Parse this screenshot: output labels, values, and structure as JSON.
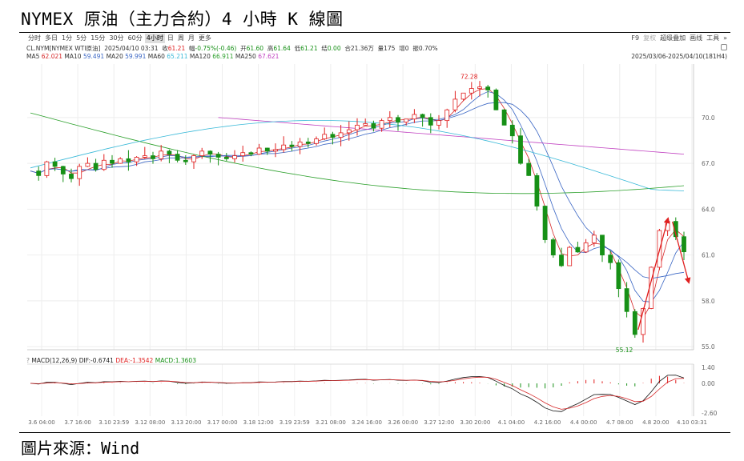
{
  "page": {
    "title": "NYMEX 原油（主力合約）4 小時 K 線圖",
    "source": "圖片來源：Wind"
  },
  "toolbar": {
    "timeframes": [
      "分时",
      "多日",
      "1分",
      "5分",
      "15分",
      "30分",
      "60分",
      "4小时",
      "日",
      "周",
      "月",
      "更多"
    ],
    "active_timeframe": "4小时",
    "tools": [
      "F9",
      "复权",
      "超级叠加",
      "画线",
      "工具",
      "»"
    ]
  },
  "quote": {
    "symbol": "CL.NYM[NYMEX WTI原油]",
    "datetime": "2025/04/10 03:31",
    "close_label": "收",
    "close": "61.21",
    "change_label": "幅",
    "change": "-0.75%(-0.46)",
    "open_label": "开",
    "open": "61.60",
    "high_label": "高",
    "high": "61.64",
    "low_label": "低",
    "low": "61.21",
    "net_label": "结",
    "net": "0.00",
    "amount_label": "合",
    "amount": "21.36万",
    "volume_label": "量",
    "volume": "175",
    "oi_label": "增",
    "oi": "0",
    "amp_label": "振",
    "amp": "0.70%"
  },
  "ma_legend": [
    {
      "name": "MA5",
      "value": "62.021",
      "color": "#d62728"
    },
    {
      "name": "MA10",
      "value": "59.491",
      "color": "#3a66c4"
    },
    {
      "name": "MA20",
      "value": "59.991",
      "color": "#3a66c4"
    },
    {
      "name": "MA60",
      "value": "65.211",
      "color": "#39b9d8"
    },
    {
      "name": "MA120",
      "value": "66.911",
      "color": "#2ca02c"
    },
    {
      "name": "MA250",
      "value": "67.621",
      "color": "#c040c0"
    }
  ],
  "date_range": "2025/03/06-2025/04/10(181H4)",
  "macd_legend": {
    "title": "MACD(12,26,9)",
    "dif_label": "DIF:",
    "dif": "-0.6741",
    "dea_label": "DEA:",
    "dea": "-1.3542",
    "macd_label": "MACD:",
    "macd": "1.3603"
  },
  "colors": {
    "up": "#e02020",
    "down": "#169016",
    "dif": "#111111",
    "dea": "#d62728"
  },
  "chart_data": {
    "type": "candlestick",
    "title": "",
    "y_ticks": [
      "70.0",
      "67.0",
      "64.0",
      "61.0",
      "58.0",
      "55.0"
    ],
    "ylim": [
      54.8,
      73.5
    ],
    "x_ticks": [
      "3.6 04:00",
      "3.7 16:00",
      "3.10 23:59",
      "3.12 08:00",
      "3.13 20:00",
      "3.17 00:00",
      "3.18 12:00",
      "3.19 23:59",
      "3.21 08:00",
      "3.24 16:00",
      "3.26 00:00",
      "3.27 12:00",
      "3.30 20:00",
      "4.1 04:00",
      "4.2 16:00",
      "4.4 00:00",
      "4.7 08:00",
      "4.8 20:00",
      "4.10 03:31"
    ],
    "annotations": [
      {
        "text": "72.28",
        "type": "high"
      },
      {
        "text": "55.12",
        "type": "low"
      }
    ],
    "price_points": [
      66.5,
      66.2,
      67.1,
      66.8,
      66.3,
      66.0,
      66.8,
      67.0,
      66.6,
      67.2,
      67.0,
      67.3,
      67.1,
      67.4,
      67.5,
      67.3,
      67.8,
      67.6,
      67.2,
      67.1,
      67.5,
      67.8,
      67.6,
      67.4,
      67.3,
      67.5,
      67.7,
      67.6,
      68.0,
      67.8,
      67.9,
      68.2,
      68.1,
      68.4,
      68.3,
      68.6,
      68.9,
      68.7,
      69.0,
      69.2,
      69.5,
      69.6,
      69.3,
      69.8,
      70.0,
      69.7,
      69.9,
      70.2,
      70.0,
      69.5,
      69.8,
      70.5,
      71.2,
      71.6,
      71.9,
      72.0,
      71.8,
      70.5,
      69.5,
      68.8,
      67.0,
      66.2,
      64.2,
      62.0,
      61.0,
      60.3,
      61.5,
      61.2,
      61.8,
      62.3,
      61.0,
      60.5,
      58.8,
      57.3,
      55.8,
      57.5,
      60.2,
      62.6,
      63.2,
      62.2,
      61.21
    ],
    "ma_series": [
      {
        "name": "MA250",
        "values": [
          70.0,
          67.6
        ]
      },
      {
        "name": "MA120",
        "values": [
          70.3,
          66.9
        ]
      },
      {
        "name": "MA60",
        "values": [
          66.7,
          65.2
        ]
      }
    ],
    "macd": {
      "y_ticks": [
        "1.40",
        "0.00",
        "-2.60"
      ],
      "ylim": [
        -2.9,
        1.7
      ],
      "dif_last": -0.6741,
      "dea_last": -1.3542,
      "macd_last": 1.3603
    }
  }
}
